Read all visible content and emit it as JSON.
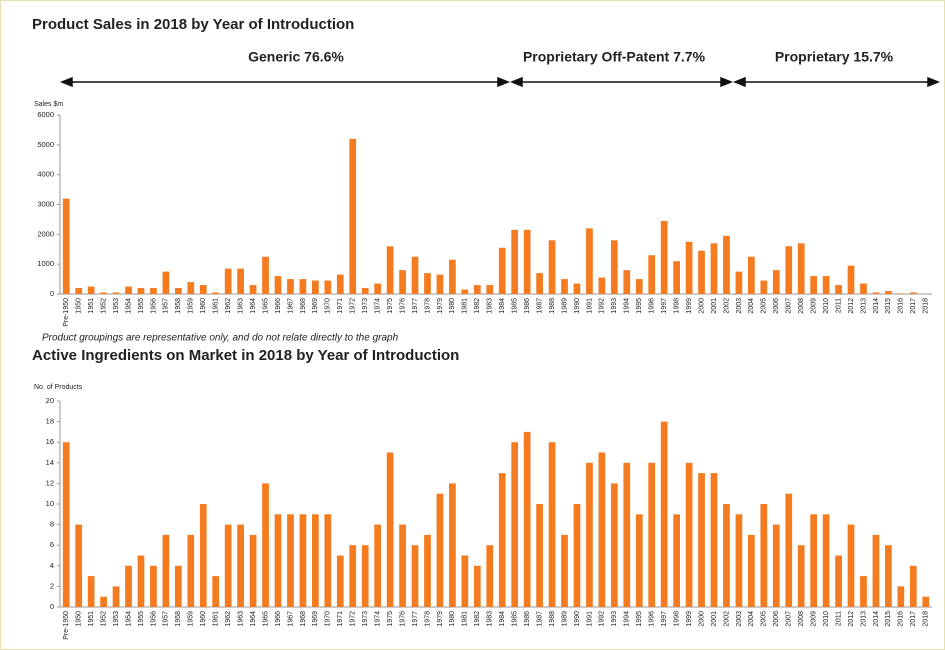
{
  "chart_data": [
    {
      "type": "bar",
      "title": "Product Sales in 2018 by Year of Introduction",
      "annotations": [
        "Generic 76.6%",
        "Proprietary Off-Patent 7.7%",
        "Proprietary 15.7%",
        "Product groupings are representative only, and do not relate directly to the graph"
      ],
      "ylabel": "Sales $m",
      "categories": [
        "Pre-1950",
        "1950",
        "1951",
        "1952",
        "1953",
        "1954",
        "1955",
        "1956",
        "1957",
        "1958",
        "1959",
        "1960",
        "1961",
        "1962",
        "1963",
        "1964",
        "1965",
        "1966",
        "1967",
        "1968",
        "1969",
        "1970",
        "1971",
        "1972",
        "1973",
        "1974",
        "1975",
        "1976",
        "1977",
        "1978",
        "1979",
        "1980",
        "1981",
        "1982",
        "1983",
        "1984",
        "1985",
        "1986",
        "1987",
        "1988",
        "1989",
        "1990",
        "1991",
        "1992",
        "1993",
        "1994",
        "1995",
        "1996",
        "1997",
        "1998",
        "1999",
        "2000",
        "2001",
        "2002",
        "2003",
        "2004",
        "2005",
        "2006",
        "2007",
        "2008",
        "2009",
        "2010",
        "2011",
        "2012",
        "2013",
        "2014",
        "2015",
        "2016",
        "2017",
        "2018"
      ],
      "values": [
        3200,
        200,
        250,
        50,
        50,
        250,
        200,
        200,
        750,
        200,
        400,
        300,
        50,
        850,
        850,
        300,
        1250,
        600,
        500,
        500,
        450,
        450,
        650,
        5200,
        200,
        350,
        1600,
        800,
        1250,
        700,
        650,
        1150,
        150,
        300,
        300,
        1550,
        2150,
        2150,
        700,
        1800,
        500,
        350,
        2200,
        550,
        1800,
        800,
        500,
        1300,
        2450,
        1100,
        1750,
        1450,
        1700,
        1950,
        750,
        1250,
        450,
        800,
        1600,
        1700,
        600,
        600,
        300,
        950,
        350,
        50,
        100,
        20,
        50,
        0
      ],
      "color": "#f47b20",
      "ylim": [
        0,
        6000
      ],
      "yticks": [
        0,
        1000,
        2000,
        3000,
        4000,
        5000,
        6000
      ],
      "grid": false
    },
    {
      "type": "bar",
      "title": "Active Ingredients on Market in 2018 by Year of Introduction",
      "ylabel": "No. of Products",
      "categories": [
        "Pre-1950",
        "1950",
        "1951",
        "1952",
        "1953",
        "1954",
        "1955",
        "1956",
        "1957",
        "1958",
        "1959",
        "1960",
        "1961",
        "1962",
        "1963",
        "1964",
        "1965",
        "1966",
        "1967",
        "1968",
        "1969",
        "1970",
        "1971",
        "1972",
        "1973",
        "1974",
        "1975",
        "1976",
        "1977",
        "1978",
        "1979",
        "1980",
        "1981",
        "1982",
        "1983",
        "1984",
        "1985",
        "1986",
        "1987",
        "1988",
        "1989",
        "1990",
        "1991",
        "1992",
        "1993",
        "1994",
        "1995",
        "1996",
        "1997",
        "1998",
        "1999",
        "2000",
        "2001",
        "2002",
        "2003",
        "2004",
        "2005",
        "2006",
        "2007",
        "2008",
        "2009",
        "2010",
        "2011",
        "2012",
        "2013",
        "2014",
        "2015",
        "2016",
        "2017",
        "2018"
      ],
      "values": [
        16,
        8,
        3,
        1,
        2,
        4,
        5,
        4,
        7,
        4,
        7,
        10,
        3,
        8,
        8,
        7,
        12,
        9,
        9,
        9,
        9,
        9,
        5,
        6,
        6,
        8,
        15,
        8,
        6,
        7,
        11,
        12,
        5,
        4,
        6,
        13,
        16,
        17,
        10,
        16,
        7,
        10,
        14,
        15,
        12,
        14,
        9,
        14,
        18,
        9,
        14,
        13,
        13,
        10,
        9,
        7,
        10,
        8,
        11,
        6,
        9,
        9,
        5,
        8,
        3,
        7,
        6,
        2,
        4,
        1
      ],
      "color": "#f47b20",
      "ylim": [
        0,
        20
      ],
      "yticks": [
        0,
        2,
        4,
        6,
        8,
        10,
        12,
        14,
        16,
        18,
        20
      ],
      "grid": false
    }
  ]
}
